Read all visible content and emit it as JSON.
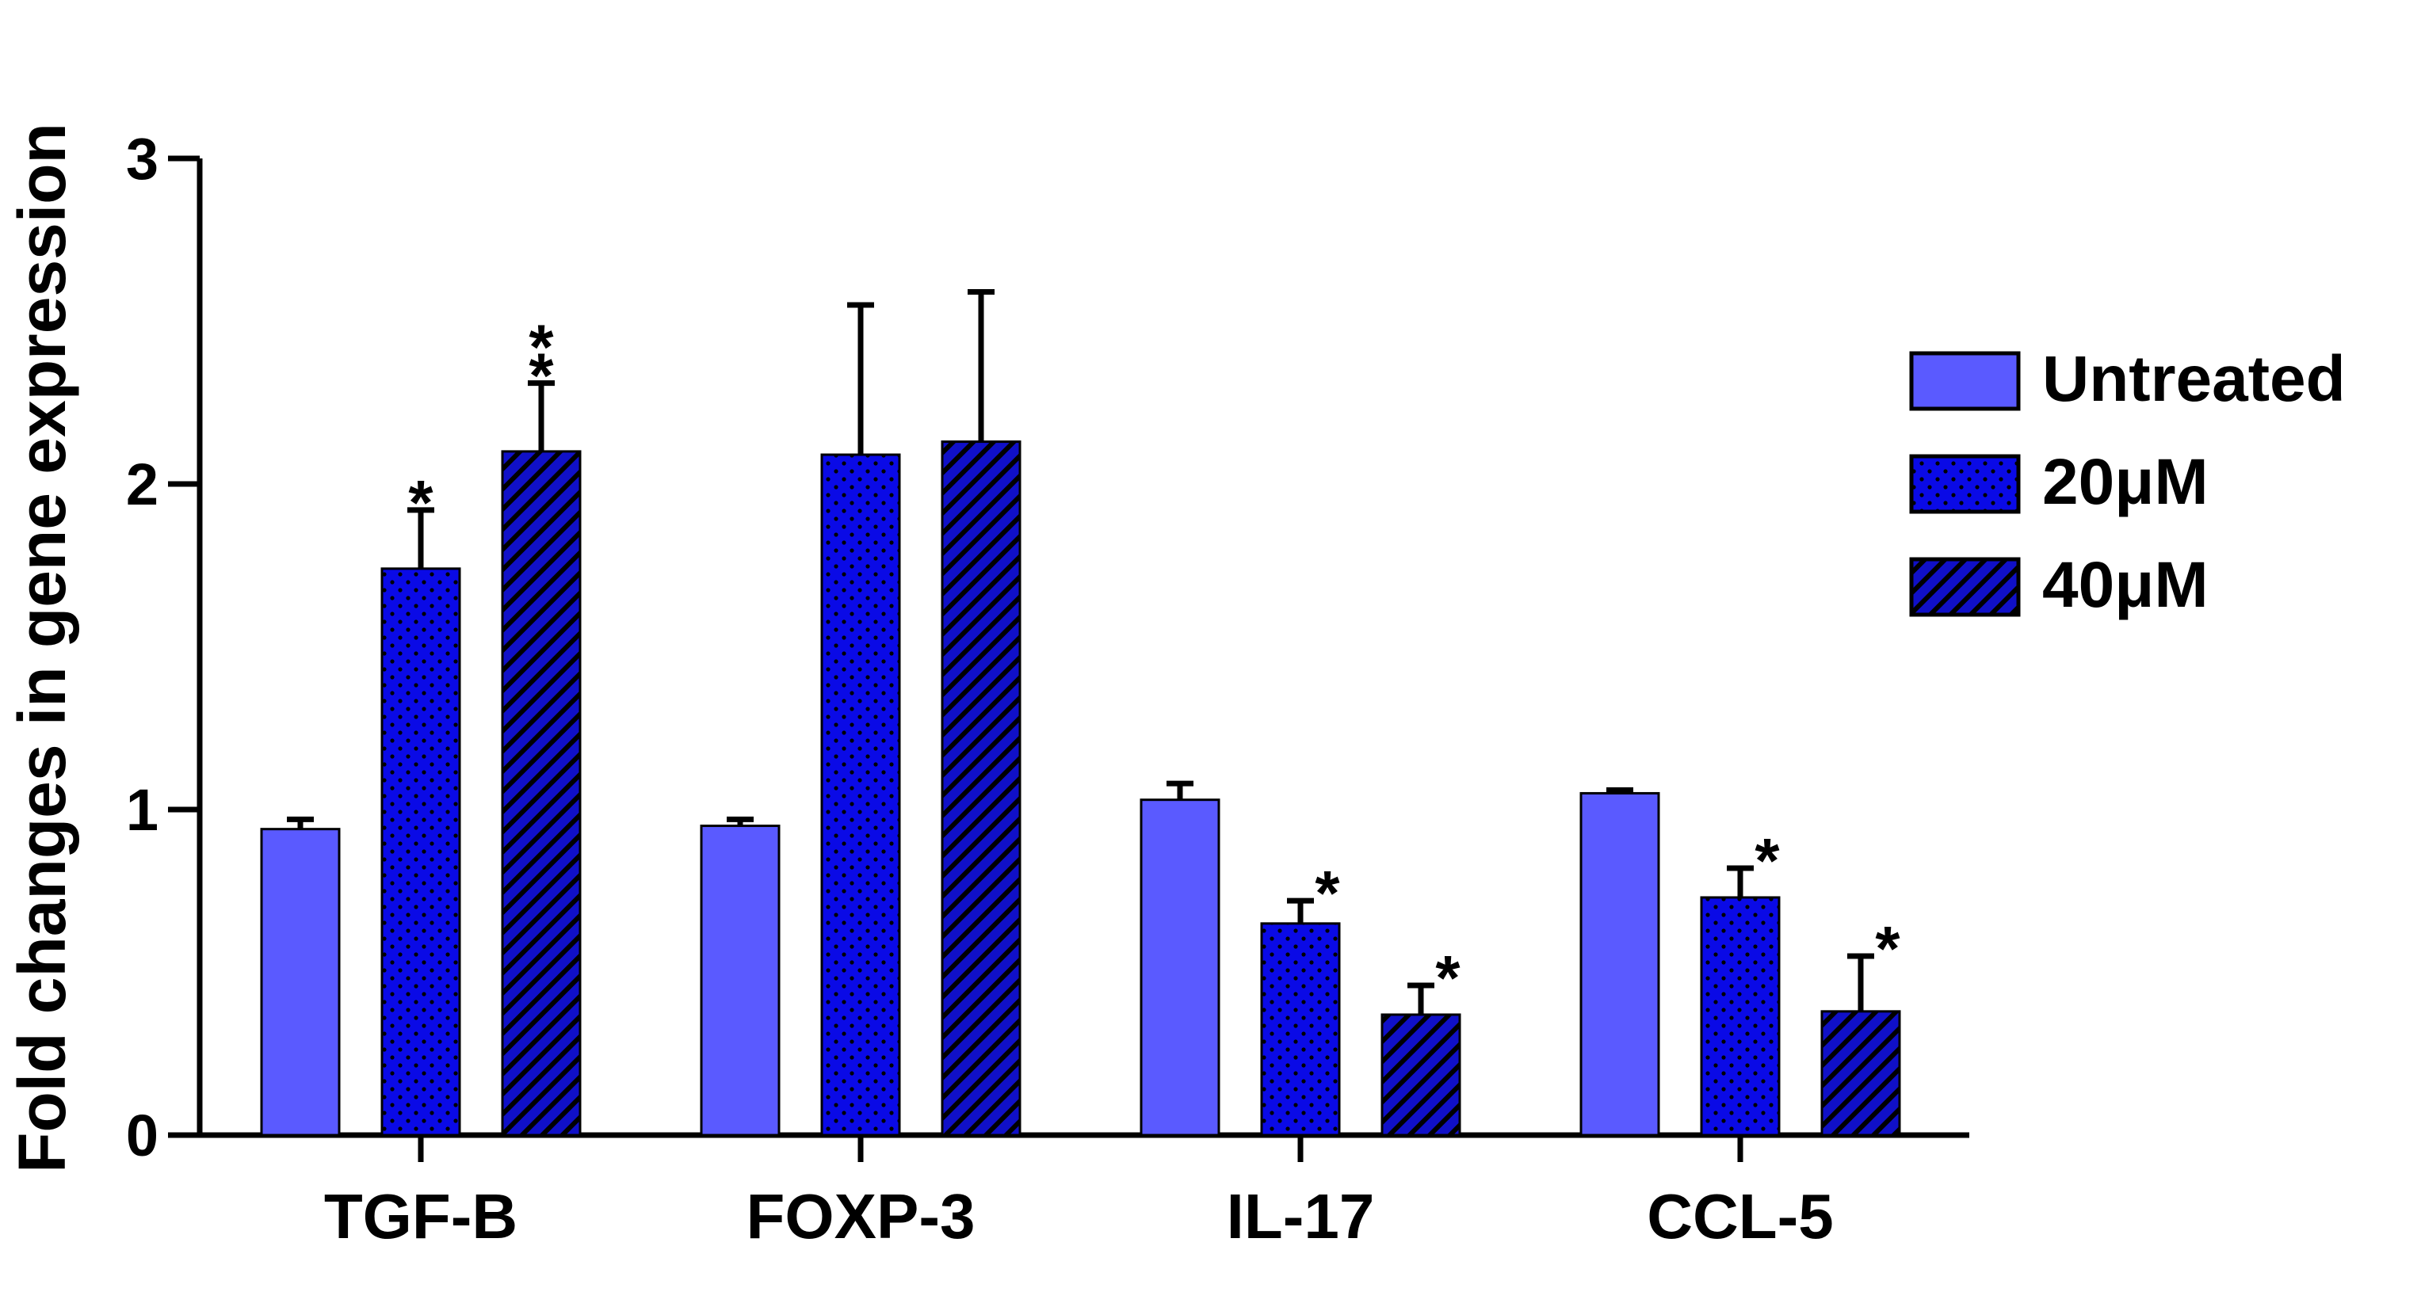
{
  "chart_data": {
    "type": "bar",
    "title": "",
    "xlabel": "",
    "ylabel": "Fold changes in gene expression",
    "ylim": [
      0,
      3
    ],
    "yticks": [
      "0",
      "1",
      "2",
      "3"
    ],
    "categories": [
      "TGF-B",
      "FOXP-3",
      "IL-17",
      "CCL-5"
    ],
    "legend_position": "right",
    "series": [
      {
        "name": "Untreated",
        "pattern": "solid",
        "color": "#5a5aff",
        "values": [
          0.94,
          0.95,
          1.03,
          1.05
        ],
        "errors": [
          0.03,
          0.02,
          0.05,
          0.01
        ],
        "significance": [
          "",
          "",
          "",
          ""
        ]
      },
      {
        "name": "20μM",
        "pattern": "dots",
        "color": "#0a0ae6",
        "values": [
          1.74,
          2.09,
          0.65,
          0.73
        ],
        "errors": [
          0.18,
          0.46,
          0.07,
          0.09
        ],
        "significance": [
          "*",
          "",
          "*",
          "*"
        ]
      },
      {
        "name": "40μM",
        "pattern": "hatch",
        "color": "#1010c8",
        "values": [
          2.1,
          2.13,
          0.37,
          0.38
        ],
        "errors": [
          0.21,
          0.46,
          0.09,
          0.17
        ],
        "significance": [
          "**",
          "",
          "*",
          "*"
        ]
      }
    ]
  }
}
